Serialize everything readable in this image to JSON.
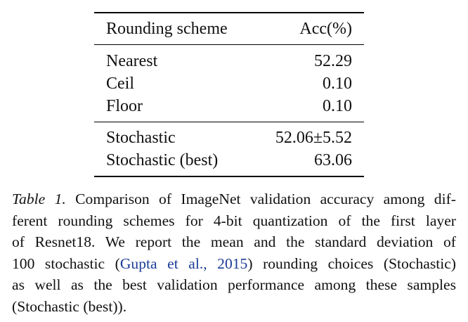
{
  "table": {
    "header": {
      "scheme": "Rounding scheme",
      "acc": "Acc(%)"
    },
    "rows": [
      {
        "scheme": "Nearest",
        "acc": "52.29"
      },
      {
        "scheme": "Ceil",
        "acc": "0.10"
      },
      {
        "scheme": "Floor",
        "acc": "0.10"
      },
      {
        "scheme": "Stochastic",
        "acc": "52.06±5.52"
      },
      {
        "scheme": "Stochastic (best)",
        "acc": "63.06"
      }
    ]
  },
  "caption": {
    "label": "Table 1.",
    "line1": "Comparison of ImageNet validation accuracy among dif-",
    "line2": "ferent rounding schemes for 4-bit quantization of the first layer",
    "line3": "of Resnet18.  We report the mean and the standard deviation of",
    "line4_pre": "100 stochastic (",
    "citation": "Gupta et al., 2015",
    "line4_post": ") rounding choices (Stochastic)",
    "line5": "as well as the best validation performance among these samples",
    "line6": "(Stochastic (best))."
  }
}
